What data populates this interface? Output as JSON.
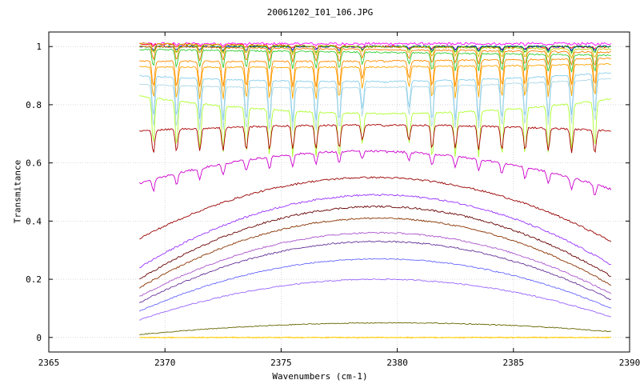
{
  "chart_data": {
    "type": "line",
    "title": "20061202_I01_106.JPG",
    "xlabel": "Wavenumbers (cm-1)",
    "ylabel": "Transmitance",
    "xlim": [
      2365,
      2390
    ],
    "ylim": [
      -0.05,
      1.05
    ],
    "x_ticks": [
      "2365",
      "2370",
      "2375",
      "2380",
      "2385",
      "2390"
    ],
    "y_ticks": [
      "0",
      "0.2",
      "0.4",
      "0.6",
      "0.8",
      "1"
    ],
    "grid": true,
    "legend": "none",
    "x_range": [
      2368.9,
      2389.2
    ],
    "line_center": 2379.5,
    "line_spacing": 1.0,
    "series": [
      {
        "color": "#ff00ff",
        "base": [
          1.01,
          1.01,
          1.01
        ],
        "dip": 0.005,
        "noise": 0.008
      },
      {
        "color": "#ff0000",
        "base": [
          1.01,
          1.0,
          1.0
        ],
        "dip": 0.008,
        "noise": 0.008
      },
      {
        "color": "#0000ff",
        "base": [
          1.0,
          1.0,
          1.0
        ],
        "dip": 0.012,
        "noise": 0.006
      },
      {
        "color": "#00aa00",
        "base": [
          1.0,
          1.0,
          1.0
        ],
        "dip": 0.02,
        "noise": 0.006
      },
      {
        "color": "#c8c800",
        "base": [
          1.01,
          1.0,
          0.99
        ],
        "dip": 0.03,
        "noise": 0.005
      },
      {
        "color": "#ff8000",
        "base": [
          1.0,
          0.99,
          0.98
        ],
        "dip": 0.045,
        "noise": 0.005
      },
      {
        "color": "#33cc33",
        "base": [
          0.99,
          0.98,
          0.97
        ],
        "dip": 0.06,
        "noise": 0.005
      },
      {
        "color": "#ff8c00",
        "base": [
          0.95,
          0.95,
          0.96
        ],
        "dip": 0.09,
        "noise": 0.005
      },
      {
        "color": "#ffa500",
        "base": [
          0.93,
          0.93,
          0.94
        ],
        "dip": 0.11,
        "noise": 0.005
      },
      {
        "color": "#87ceeb",
        "base": [
          0.9,
          0.88,
          0.91
        ],
        "dip": 0.14,
        "noise": 0.004
      },
      {
        "color": "#add8e6",
        "base": [
          0.87,
          0.86,
          0.89
        ],
        "dip": 0.15,
        "noise": 0.004
      },
      {
        "color": "#adff2f",
        "base": [
          0.83,
          0.77,
          0.82
        ],
        "dip": 0.16,
        "noise": 0.005
      },
      {
        "color": "#aa0000",
        "base": [
          0.71,
          0.73,
          0.71
        ],
        "dip": 0.08,
        "noise": 0.006
      },
      {
        "color": "#cc00cc",
        "base": [
          0.53,
          0.64,
          0.51
        ],
        "dip": 0.04,
        "noise": 0.007
      },
      {
        "color": "#990000",
        "base": [
          0.34,
          0.55,
          0.33
        ],
        "dip": 0.0,
        "noise": 0.006
      },
      {
        "color": "#9933ff",
        "base": [
          0.24,
          0.49,
          0.25
        ],
        "dip": 0.0,
        "noise": 0.006
      },
      {
        "color": "#660000",
        "base": [
          0.2,
          0.45,
          0.21
        ],
        "dip": 0.0,
        "noise": 0.006
      },
      {
        "color": "#883300",
        "base": [
          0.17,
          0.41,
          0.18
        ],
        "dip": 0.0,
        "noise": 0.005
      },
      {
        "color": "#aa55cc",
        "base": [
          0.14,
          0.36,
          0.15
        ],
        "dip": 0.0,
        "noise": 0.005
      },
      {
        "color": "#663399",
        "base": [
          0.12,
          0.33,
          0.13
        ],
        "dip": 0.0,
        "noise": 0.005
      },
      {
        "color": "#6666ff",
        "base": [
          0.09,
          0.27,
          0.1
        ],
        "dip": 0.0,
        "noise": 0.004
      },
      {
        "color": "#9966ff",
        "base": [
          0.06,
          0.2,
          0.07
        ],
        "dip": 0.0,
        "noise": 0.004
      },
      {
        "color": "#666600",
        "base": [
          0.01,
          0.05,
          0.02
        ],
        "dip": 0.0,
        "noise": 0.003
      },
      {
        "color": "#ffa500",
        "base": [
          0.0,
          0.0,
          0.0
        ],
        "dip": 0.0,
        "noise": 0.003
      },
      {
        "color": "#ffd700",
        "base": [
          0.0,
          0.0,
          0.0
        ],
        "dip": 0.0,
        "noise": 0.002
      }
    ]
  }
}
